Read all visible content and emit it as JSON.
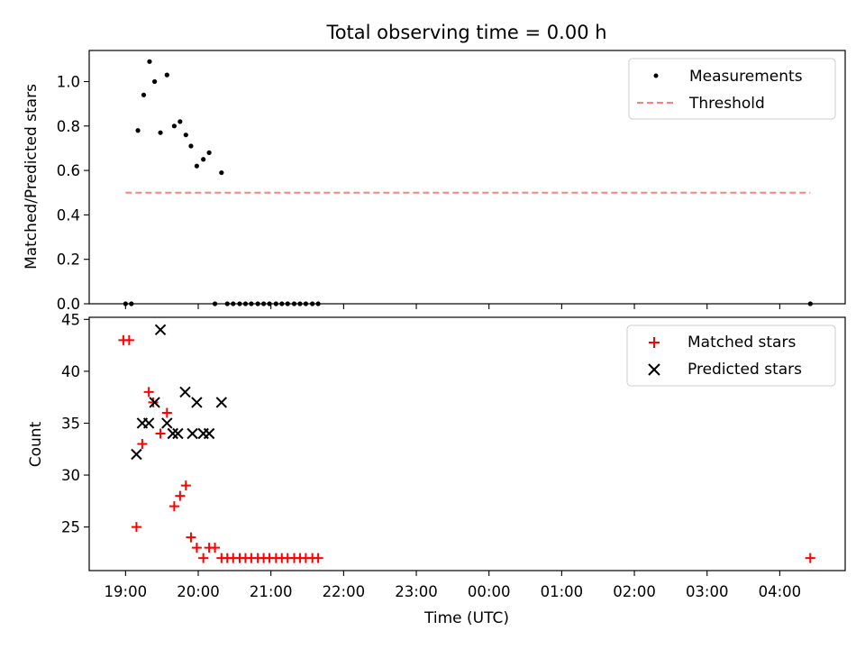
{
  "figure": {
    "title": "Total observing time = 0.00 h",
    "xlabel": "Time (UTC)",
    "x_ticks": [
      "19:00",
      "20:00",
      "21:00",
      "22:00",
      "23:00",
      "00:00",
      "01:00",
      "02:00",
      "03:00",
      "04:00"
    ]
  },
  "chart_data": [
    {
      "type": "scatter",
      "ylabel": "Matched/Predicted stars",
      "xlim": [
        -0.5,
        9.9
      ],
      "ylim": [
        0,
        1.14
      ],
      "y_ticks": [
        0.0,
        0.2,
        0.4,
        0.6,
        0.8,
        1.0
      ],
      "legend_position": "upper right",
      "series": [
        {
          "name": "Measurements",
          "kind": "points",
          "color": "#000000",
          "x": [
            0.0,
            0.08,
            0.17,
            0.25,
            0.33,
            0.4,
            0.48,
            0.57,
            0.67,
            0.75,
            0.83,
            0.9,
            0.98,
            1.07,
            1.15,
            1.23,
            1.32,
            1.4,
            1.48,
            1.57,
            1.65,
            1.73,
            1.82,
            1.9,
            1.98,
            2.07,
            2.15,
            2.23,
            2.32,
            2.4,
            2.48,
            2.57,
            2.65,
            9.42
          ],
          "y": [
            0.0,
            0.0,
            0.78,
            0.94,
            1.09,
            1.0,
            0.77,
            1.03,
            0.8,
            0.82,
            0.76,
            0.71,
            0.62,
            0.65,
            0.68,
            0.0,
            0.59,
            0.0,
            0.0,
            0.0,
            0.0,
            0.0,
            0.0,
            0.0,
            0.0,
            0.0,
            0.0,
            0.0,
            0.0,
            0.0,
            0.0,
            0.0,
            0.0,
            0.0
          ]
        },
        {
          "name": "Threshold",
          "kind": "dashed-line",
          "color": "#ff7f7f",
          "x": [
            0.0,
            9.42
          ],
          "y": [
            0.5,
            0.5
          ]
        }
      ]
    },
    {
      "type": "scatter",
      "ylabel": "Count",
      "xlim": [
        -0.5,
        9.9
      ],
      "ylim": [
        20.8,
        45.2
      ],
      "y_ticks": [
        25,
        30,
        35,
        40,
        45
      ],
      "legend_position": "upper right",
      "series": [
        {
          "name": "Matched stars",
          "marker": "plus",
          "color": "#ff0000",
          "x": [
            -0.03,
            0.05,
            0.15,
            0.23,
            0.32,
            0.38,
            0.48,
            0.57,
            0.67,
            0.75,
            0.83,
            0.9,
            0.98,
            1.07,
            1.15,
            1.23,
            1.32,
            1.4,
            1.48,
            1.57,
            1.65,
            1.73,
            1.82,
            1.9,
            1.98,
            2.07,
            2.15,
            2.23,
            2.32,
            2.4,
            2.48,
            2.57,
            2.65,
            9.42
          ],
          "y": [
            43,
            43,
            25,
            33,
            38,
            37,
            34,
            36,
            27,
            28,
            29,
            24,
            23,
            22,
            23,
            23,
            22,
            22,
            22,
            22,
            22,
            22,
            22,
            22,
            22,
            22,
            22,
            22,
            22,
            22,
            22,
            22,
            22,
            22
          ]
        },
        {
          "name": "Predicted stars",
          "marker": "x",
          "color": "#000000",
          "x": [
            0.15,
            0.23,
            0.32,
            0.4,
            0.48,
            0.57,
            0.65,
            0.72,
            0.82,
            0.92,
            0.98,
            1.07,
            1.15,
            1.32
          ],
          "y": [
            32,
            35,
            35,
            37,
            44,
            35,
            34,
            34,
            38,
            34,
            37,
            34,
            34,
            37
          ]
        }
      ]
    }
  ]
}
